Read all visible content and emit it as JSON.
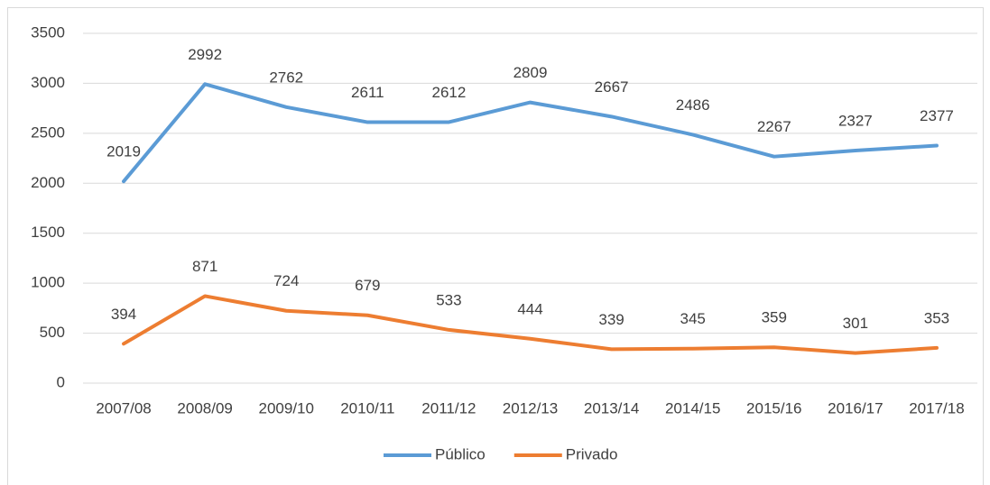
{
  "chart_data": {
    "type": "line",
    "categories": [
      "2007/08",
      "2008/09",
      "2009/10",
      "2010/11",
      "2011/12",
      "2012/13",
      "2013/14",
      "2014/15",
      "2015/16",
      "2016/17",
      "2017/18"
    ],
    "series": [
      {
        "name": "Público",
        "color": "#5b9bd5",
        "values": [
          2019,
          2992,
          2762,
          2611,
          2612,
          2809,
          2667,
          2486,
          2267,
          2327,
          2377
        ]
      },
      {
        "name": "Privado",
        "color": "#ed7d31",
        "values": [
          394,
          871,
          724,
          679,
          533,
          444,
          339,
          345,
          359,
          301,
          353
        ]
      }
    ],
    "ylim": [
      0,
      3500
    ],
    "yticks": [
      0,
      500,
      1000,
      1500,
      2000,
      2500,
      3000,
      3500
    ],
    "grid": true,
    "legend": "bottom"
  }
}
